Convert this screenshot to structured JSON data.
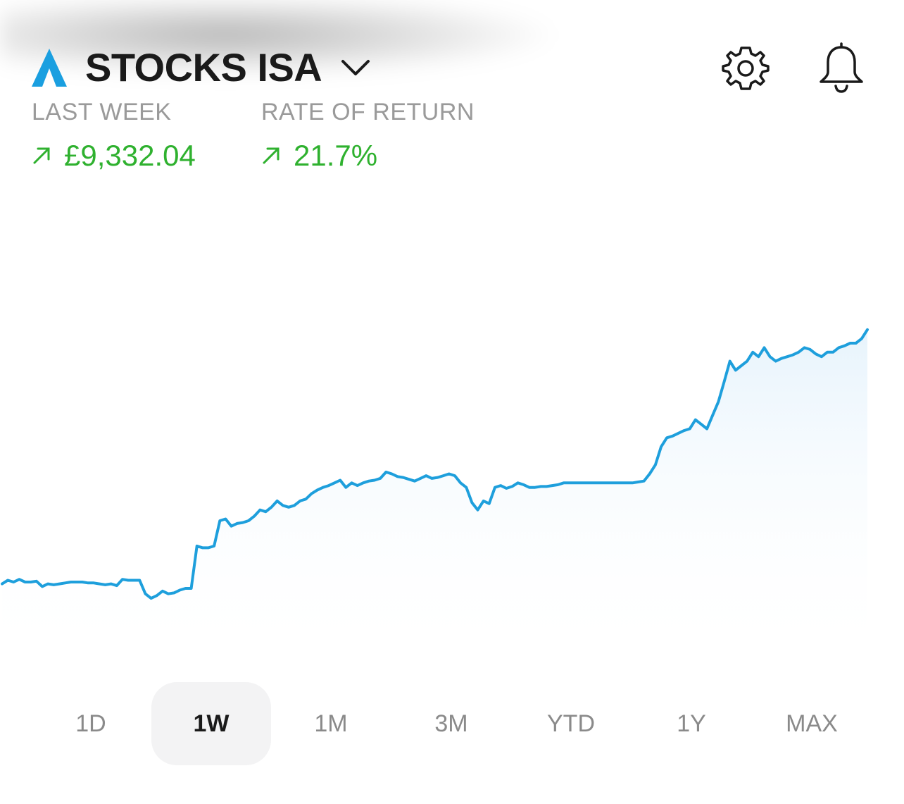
{
  "header": {
    "title": "STOCKS ISA",
    "logo_icon": "chevron-up-logo",
    "dropdown_icon": "chevron-down-icon",
    "settings_icon": "gear-icon",
    "notifications_icon": "bell-icon"
  },
  "stats": [
    {
      "label": "LAST WEEK",
      "value": "£9,332.04",
      "trend_icon": "arrow-up-right-icon"
    },
    {
      "label": "RATE OF RETURN",
      "value": "21.7%",
      "trend_icon": "arrow-up-right-icon"
    }
  ],
  "colors": {
    "accent": "#1a9fe0",
    "positive": "#2fb12f",
    "line": "#1e9fdc",
    "title": "#1a1a1a",
    "muted": "#9a9a9a"
  },
  "chart_data": {
    "type": "area",
    "title": "",
    "xlabel": "",
    "ylabel": "",
    "grid": false,
    "y": [
      48,
      52,
      50,
      53,
      50,
      50,
      51,
      45,
      48,
      47,
      48,
      49,
      50,
      50,
      50,
      49,
      49,
      48,
      47,
      48,
      46,
      53,
      52,
      52,
      52,
      37,
      32,
      35,
      40,
      37,
      38,
      41,
      43,
      43,
      90,
      88,
      88,
      90,
      118,
      120,
      112,
      115,
      116,
      118,
      123,
      130,
      128,
      133,
      140,
      135,
      133,
      135,
      140,
      142,
      148,
      152,
      155,
      157,
      160,
      163,
      155,
      160,
      157,
      160,
      162,
      163,
      165,
      172,
      170,
      167,
      166,
      164,
      162,
      165,
      168,
      165,
      166,
      168,
      170,
      168,
      160,
      155,
      138,
      130,
      140,
      137,
      155,
      157,
      154,
      156,
      160,
      158,
      155,
      155,
      156,
      156,
      157,
      158,
      160,
      160,
      160,
      160,
      160,
      160,
      160,
      160,
      160,
      160,
      160,
      160,
      160,
      161,
      162,
      170,
      180,
      200,
      210,
      212,
      215,
      218,
      220,
      230,
      225,
      220,
      235,
      250,
      272,
      295,
      285,
      290,
      295,
      305,
      300,
      310,
      300,
      295,
      298,
      300,
      302,
      305,
      310,
      308,
      303,
      300,
      305,
      305,
      310,
      312,
      315,
      315,
      320,
      330
    ]
  },
  "ranges": [
    {
      "label": "1D",
      "active": false
    },
    {
      "label": "1W",
      "active": true
    },
    {
      "label": "1M",
      "active": false
    },
    {
      "label": "3M",
      "active": false
    },
    {
      "label": "YTD",
      "active": false
    },
    {
      "label": "1Y",
      "active": false
    },
    {
      "label": "MAX",
      "active": false
    }
  ]
}
